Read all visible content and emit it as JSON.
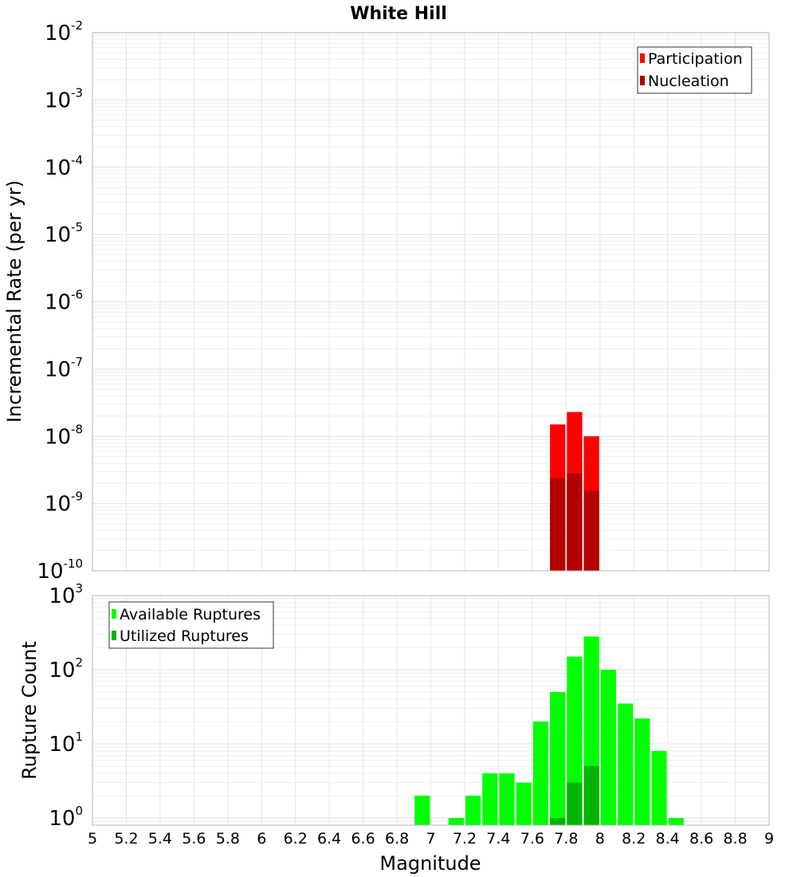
{
  "chart_data": [
    {
      "type": "bar",
      "title": "White Hill",
      "ylabel": "Incremental Rate (per yr)",
      "xlabel": "",
      "yscale": "log",
      "xlim": [
        5,
        9
      ],
      "ylim": [
        1e-10,
        0.01
      ],
      "y_ticks": [
        {
          "base": "10",
          "exp": "-2",
          "value": 0.01
        },
        {
          "base": "10",
          "exp": "-3",
          "value": 0.001
        },
        {
          "base": "10",
          "exp": "-4",
          "value": 0.0001
        },
        {
          "base": "10",
          "exp": "-5",
          "value": 1e-05
        },
        {
          "base": "10",
          "exp": "-6",
          "value": 1e-06
        },
        {
          "base": "10",
          "exp": "-7",
          "value": 1e-07
        },
        {
          "base": "10",
          "exp": "-8",
          "value": 1e-08
        },
        {
          "base": "10",
          "exp": "-9",
          "value": 1e-09
        },
        {
          "base": "10",
          "exp": "-10",
          "value": 1e-10
        }
      ],
      "bar_width": 0.1,
      "grid": true,
      "legend_position": "top-right",
      "series": [
        {
          "name": "Participation",
          "color": "#ff0000",
          "x": [
            7.75,
            7.85,
            7.95
          ],
          "values": [
            1.5e-08,
            2.3e-08,
            1e-08
          ]
        },
        {
          "name": "Nucleation",
          "color": "#b40000",
          "x": [
            7.75,
            7.85,
            7.95
          ],
          "values": [
            2.4e-09,
            2.8e-09,
            1.55e-09
          ]
        }
      ]
    },
    {
      "type": "bar",
      "title": "",
      "ylabel": "Rupture Count",
      "xlabel": "Magnitude",
      "yscale": "log",
      "xlim": [
        5,
        9
      ],
      "ylim": [
        0.8,
        1000
      ],
      "y_ticks": [
        {
          "base": "10",
          "exp": "3",
          "value": 1000
        },
        {
          "base": "10",
          "exp": "2",
          "value": 100
        },
        {
          "base": "10",
          "exp": "1",
          "value": 10
        },
        {
          "base": "10",
          "exp": "0",
          "value": 1
        }
      ],
      "x_ticks": [
        "5",
        "5.2",
        "5.4",
        "5.6",
        "5.8",
        "6",
        "6.2",
        "6.4",
        "6.6",
        "6.8",
        "7",
        "7.2",
        "7.4",
        "7.6",
        "7.8",
        "8",
        "8.2",
        "8.4",
        "8.6",
        "8.8",
        "9"
      ],
      "bar_width": 0.1,
      "grid": true,
      "legend_position": "top-left",
      "series": [
        {
          "name": "Available Ruptures",
          "color": "#00ff00",
          "x": [
            6.95,
            7.15,
            7.25,
            7.35,
            7.45,
            7.55,
            7.65,
            7.75,
            7.85,
            7.95,
            8.05,
            8.15,
            8.25,
            8.35,
            8.45
          ],
          "values": [
            2,
            1,
            2,
            4,
            4,
            3,
            20,
            50,
            150,
            280,
            100,
            35,
            22,
            8,
            1
          ]
        },
        {
          "name": "Utilized Ruptures",
          "color": "#00b400",
          "x": [
            7.75,
            7.85,
            7.95
          ],
          "values": [
            1,
            3,
            5
          ]
        }
      ]
    }
  ]
}
